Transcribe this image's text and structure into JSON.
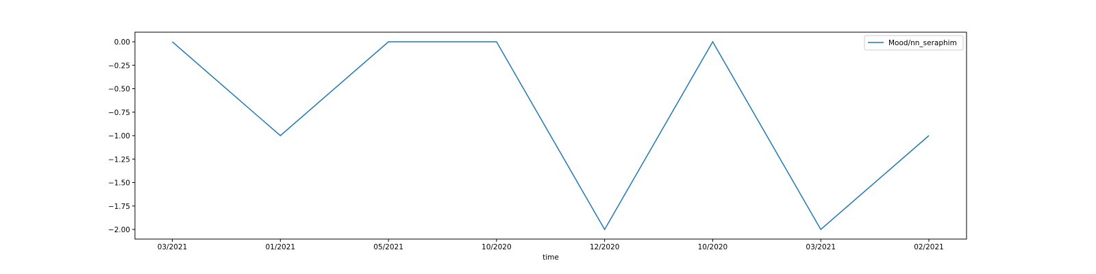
{
  "chart_data": {
    "type": "line",
    "categories": [
      "03/2021",
      "01/2021",
      "05/2021",
      "10/2020",
      "12/2020",
      "10/2020",
      "03/2021",
      "02/2021"
    ],
    "series": [
      {
        "name": "Mood/nn_seraphim",
        "values": [
          0,
          -1,
          0,
          0,
          -2,
          0,
          -2,
          -1
        ],
        "color": "#1f77b4"
      }
    ],
    "xlabel": "time",
    "ylabel": "",
    "ylim": [
      -2.1,
      0.1
    ],
    "yticks": [
      0.0,
      -0.25,
      -0.5,
      -0.75,
      -1.0,
      -1.25,
      -1.5,
      -1.75,
      -2.0
    ],
    "ytick_labels": [
      "0.00",
      "−0.25",
      "−0.50",
      "−0.75",
      "−1.00",
      "−1.25",
      "−1.50",
      "−1.75",
      "−2.00"
    ],
    "grid": false,
    "legend_position": "top-right"
  }
}
